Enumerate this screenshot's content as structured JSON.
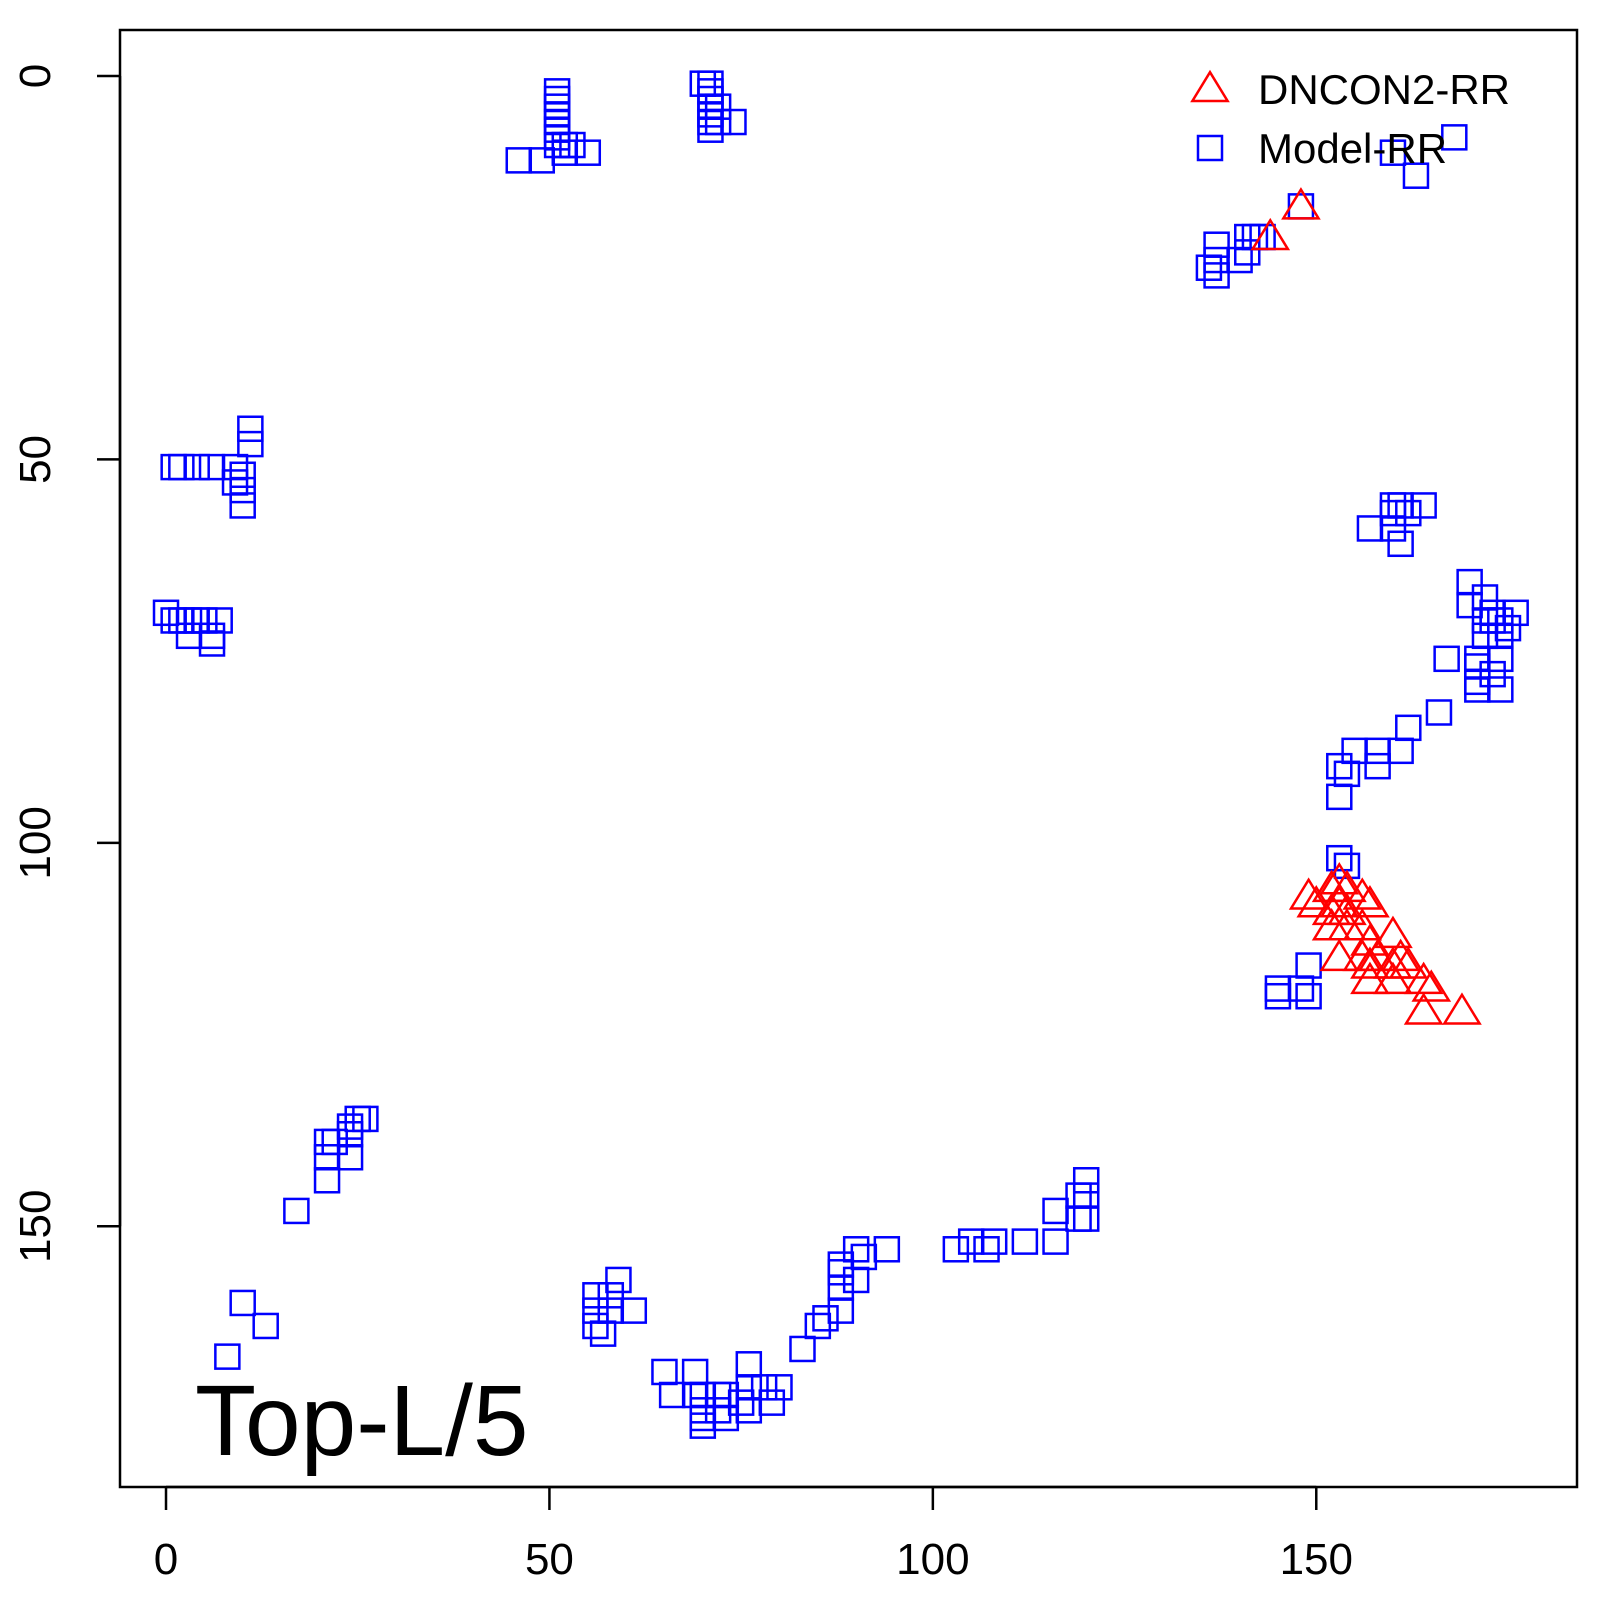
{
  "chart_data": {
    "type": "scatter",
    "title": "",
    "xlabel": "",
    "ylabel": "",
    "xlim": [
      -6,
      184
    ],
    "ylim": [
      -6,
      184
    ],
    "y_reversed": true,
    "x_ticks": [
      0,
      50,
      100,
      150
    ],
    "y_ticks": [
      0,
      50,
      100,
      150
    ],
    "x_tick_labels": [
      "0",
      "50",
      "100",
      "150"
    ],
    "y_tick_labels": [
      "0",
      "50",
      "100",
      "150"
    ],
    "grid": false,
    "legend_position": "top-right",
    "annotation": "Top-L/5",
    "series": [
      {
        "name": "DNCON2-RR",
        "marker": "triangle-open",
        "color": "#ff0000",
        "points": [
          [
            148,
            17
          ],
          [
            144,
            21
          ],
          [
            149,
            107
          ],
          [
            150,
            108
          ],
          [
            152,
            106
          ],
          [
            152,
            109
          ],
          [
            153,
            105
          ],
          [
            153,
            108
          ],
          [
            154,
            106
          ],
          [
            154,
            109
          ],
          [
            156,
            107
          ],
          [
            157,
            108
          ],
          [
            152,
            111
          ],
          [
            154,
            111
          ],
          [
            156,
            111
          ],
          [
            157,
            113
          ],
          [
            160,
            112
          ],
          [
            153,
            115
          ],
          [
            156,
            115
          ],
          [
            157,
            116
          ],
          [
            158,
            115
          ],
          [
            160,
            116
          ],
          [
            161,
            115
          ],
          [
            162,
            116
          ],
          [
            157,
            118
          ],
          [
            160,
            118
          ],
          [
            164,
            118
          ],
          [
            165,
            119
          ],
          [
            164,
            122
          ],
          [
            169,
            122
          ]
        ]
      },
      {
        "name": "Model-RR",
        "marker": "square-open",
        "color": "#0000ff",
        "points": [
          [
            51,
            2
          ],
          [
            51,
            3
          ],
          [
            51,
            4
          ],
          [
            51,
            5
          ],
          [
            51,
            6
          ],
          [
            51,
            7
          ],
          [
            51,
            8
          ],
          [
            51,
            9
          ],
          [
            52,
            9
          ],
          [
            53,
            9
          ],
          [
            55,
            10
          ],
          [
            52,
            10
          ],
          [
            46,
            11
          ],
          [
            49,
            11
          ],
          [
            70,
            1
          ],
          [
            71,
            1
          ],
          [
            71,
            2
          ],
          [
            71,
            3
          ],
          [
            71,
            4
          ],
          [
            72,
            4
          ],
          [
            71,
            5
          ],
          [
            71,
            6
          ],
          [
            72,
            6
          ],
          [
            74,
            6
          ],
          [
            71,
            7
          ],
          [
            168,
            8
          ],
          [
            160,
            10
          ],
          [
            163,
            13
          ],
          [
            148,
            17
          ],
          [
            141,
            21
          ],
          [
            142,
            21
          ],
          [
            143,
            21
          ],
          [
            137,
            22
          ],
          [
            141,
            23
          ],
          [
            137,
            24
          ],
          [
            140,
            24
          ],
          [
            136,
            25
          ],
          [
            137,
            26
          ],
          [
            11,
            46
          ],
          [
            11,
            48
          ],
          [
            1,
            51
          ],
          [
            2,
            51
          ],
          [
            4,
            51
          ],
          [
            6,
            51
          ],
          [
            9,
            51
          ],
          [
            10,
            52
          ],
          [
            9,
            53
          ],
          [
            10,
            54
          ],
          [
            10,
            56
          ],
          [
            0,
            70
          ],
          [
            1,
            71
          ],
          [
            2,
            71
          ],
          [
            3,
            71
          ],
          [
            4,
            71
          ],
          [
            5,
            71
          ],
          [
            7,
            71
          ],
          [
            3,
            73
          ],
          [
            6,
            73
          ],
          [
            6,
            74
          ],
          [
            160,
            56
          ],
          [
            161,
            56
          ],
          [
            164,
            56
          ],
          [
            160,
            57
          ],
          [
            162,
            57
          ],
          [
            157,
            59
          ],
          [
            160,
            59
          ],
          [
            161,
            61
          ],
          [
            170,
            66
          ],
          [
            170,
            69
          ],
          [
            172,
            68
          ],
          [
            173,
            70
          ],
          [
            172,
            71
          ],
          [
            173,
            71
          ],
          [
            174,
            71
          ],
          [
            176,
            70
          ],
          [
            175,
            72
          ],
          [
            172,
            73
          ],
          [
            174,
            73
          ],
          [
            167,
            76
          ],
          [
            171,
            76
          ],
          [
            174,
            76
          ],
          [
            171,
            77
          ],
          [
            173,
            78
          ],
          [
            171,
            79
          ],
          [
            171,
            80
          ],
          [
            174,
            80
          ],
          [
            166,
            83
          ],
          [
            162,
            85
          ],
          [
            161,
            88
          ],
          [
            158,
            88
          ],
          [
            155,
            88
          ],
          [
            158,
            90
          ],
          [
            153,
            90
          ],
          [
            154,
            91
          ],
          [
            153,
            94
          ],
          [
            153,
            102
          ],
          [
            154,
            103
          ],
          [
            149,
            116
          ],
          [
            148,
            119
          ],
          [
            145,
            119
          ],
          [
            145,
            120
          ],
          [
            149,
            120
          ],
          [
            25,
            136
          ],
          [
            26,
            136
          ],
          [
            24,
            137
          ],
          [
            24,
            138
          ],
          [
            21,
            139
          ],
          [
            22,
            139
          ],
          [
            21,
            141
          ],
          [
            24,
            141
          ],
          [
            21,
            144
          ],
          [
            17,
            148
          ],
          [
            120,
            144
          ],
          [
            119,
            146
          ],
          [
            120,
            146
          ],
          [
            116,
            148
          ],
          [
            119,
            149
          ],
          [
            120,
            149
          ],
          [
            94,
            153
          ],
          [
            90,
            153
          ],
          [
            91,
            154
          ],
          [
            88,
            155
          ],
          [
            88,
            156
          ],
          [
            90,
            157
          ],
          [
            88,
            158
          ],
          [
            103,
            153
          ],
          [
            105,
            152
          ],
          [
            107,
            153
          ],
          [
            108,
            152
          ],
          [
            112,
            152
          ],
          [
            116,
            152
          ],
          [
            10,
            160
          ],
          [
            13,
            163
          ],
          [
            8,
            167
          ],
          [
            59,
            157
          ],
          [
            56,
            159
          ],
          [
            58,
            159
          ],
          [
            56,
            161
          ],
          [
            58,
            161
          ],
          [
            61,
            161
          ],
          [
            56,
            163
          ],
          [
            57,
            164
          ],
          [
            88,
            161
          ],
          [
            86,
            162
          ],
          [
            85,
            163
          ],
          [
            83,
            166
          ],
          [
            65,
            169
          ],
          [
            69,
            169
          ],
          [
            76,
            168
          ],
          [
            76,
            171
          ],
          [
            78,
            171
          ],
          [
            80,
            171
          ],
          [
            66,
            172
          ],
          [
            69,
            172
          ],
          [
            70,
            172
          ],
          [
            72,
            172
          ],
          [
            73,
            172
          ],
          [
            75,
            173
          ],
          [
            79,
            173
          ],
          [
            70,
            174
          ],
          [
            72,
            174
          ],
          [
            76,
            174
          ],
          [
            70,
            175
          ],
          [
            73,
            175
          ],
          [
            70,
            176
          ]
        ]
      }
    ]
  }
}
